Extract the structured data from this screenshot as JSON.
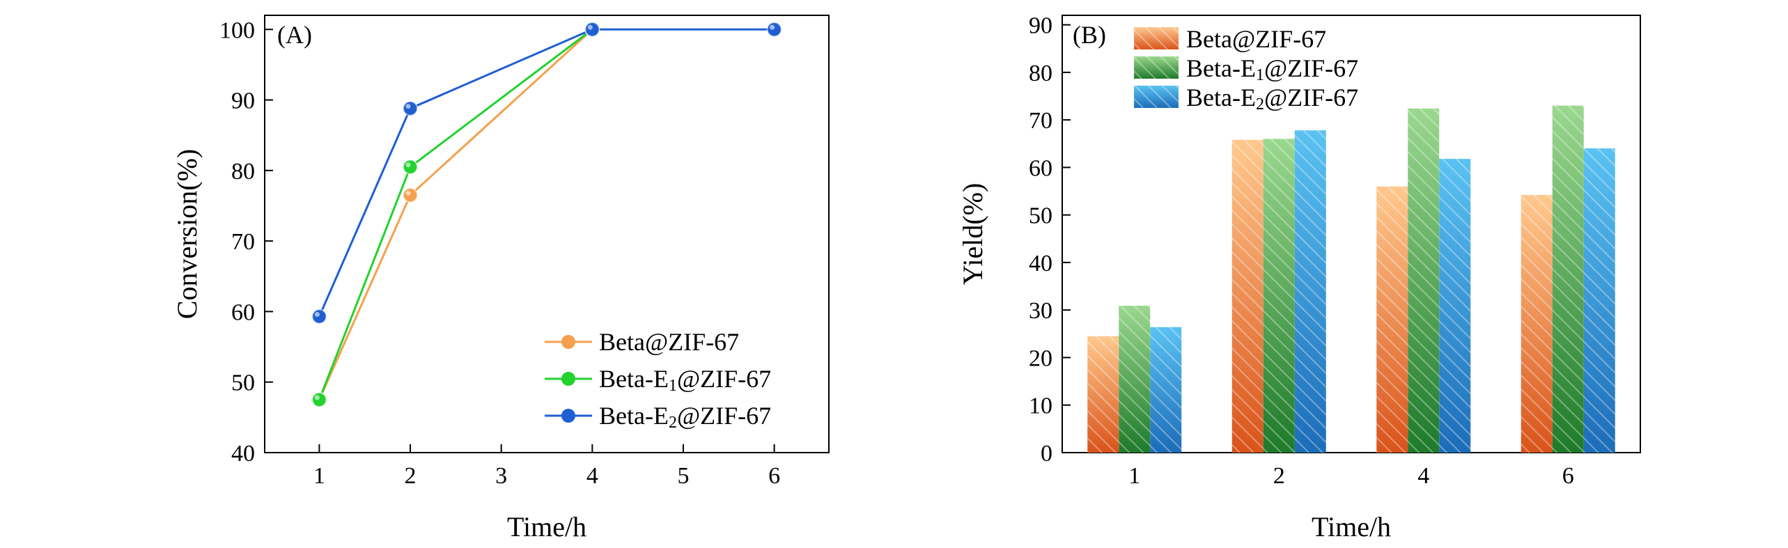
{
  "chart_data": [
    {
      "type": "line",
      "panel_label": "(A)",
      "xlabel": "Time/h",
      "ylabel": "Conversion(%)",
      "xlim": [
        0.4,
        6.6
      ],
      "ylim": [
        40,
        102
      ],
      "xticks": [
        1,
        2,
        3,
        4,
        5,
        6
      ],
      "yticks": [
        40,
        50,
        60,
        70,
        80,
        90,
        100
      ],
      "legend_position": "bottom-right",
      "series": [
        {
          "name": "Beta@ZIF-67",
          "sub": "",
          "prefix": "Beta",
          "suffix": "@ZIF-67",
          "color": "#F5A04E",
          "x": [
            1,
            2,
            4
          ],
          "y": [
            47.5,
            76.5,
            100
          ]
        },
        {
          "name": "Beta-E1@ZIF-67",
          "sub": "1",
          "prefix": "Beta-E",
          "suffix": "@ZIF-67",
          "color": "#22D22E",
          "x": [
            1,
            2,
            4
          ],
          "y": [
            47.5,
            80.5,
            100
          ]
        },
        {
          "name": "Beta-E2@ZIF-67",
          "sub": "2",
          "prefix": "Beta-E",
          "suffix": "@ZIF-67",
          "color": "#1F5FD1",
          "x": [
            1,
            2,
            4,
            6
          ],
          "y": [
            59.3,
            88.8,
            100,
            100
          ]
        }
      ]
    },
    {
      "type": "bar",
      "panel_label": "(B)",
      "xlabel": "Time/h",
      "ylabel": "Yield(%)",
      "categories": [
        "1",
        "2",
        "4",
        "6"
      ],
      "ylim": [
        0,
        92
      ],
      "yticks": [
        0,
        10,
        20,
        30,
        40,
        50,
        60,
        70,
        80,
        90
      ],
      "legend_position": "top-left",
      "series": [
        {
          "name": "Beta@ZIF-67",
          "sub": "",
          "prefix": "Beta",
          "suffix": "@ZIF-67",
          "color_top": "#FFC98E",
          "color_bottom": "#D9531A",
          "values": [
            24.5,
            65.8,
            56.0,
            54.2
          ]
        },
        {
          "name": "Beta-E1@ZIF-67",
          "sub": "1",
          "prefix": "Beta-E",
          "suffix": "@ZIF-67",
          "color_top": "#9AD88E",
          "color_bottom": "#1E7A2A",
          "values": [
            30.9,
            66.0,
            72.4,
            73.0
          ]
        },
        {
          "name": "Beta-E2@ZIF-67",
          "sub": "2",
          "prefix": "Beta-E",
          "suffix": "@ZIF-67",
          "color_top": "#5AC2F2",
          "color_bottom": "#1C6CB8",
          "values": [
            26.4,
            67.8,
            61.8,
            64.0
          ]
        }
      ]
    }
  ]
}
